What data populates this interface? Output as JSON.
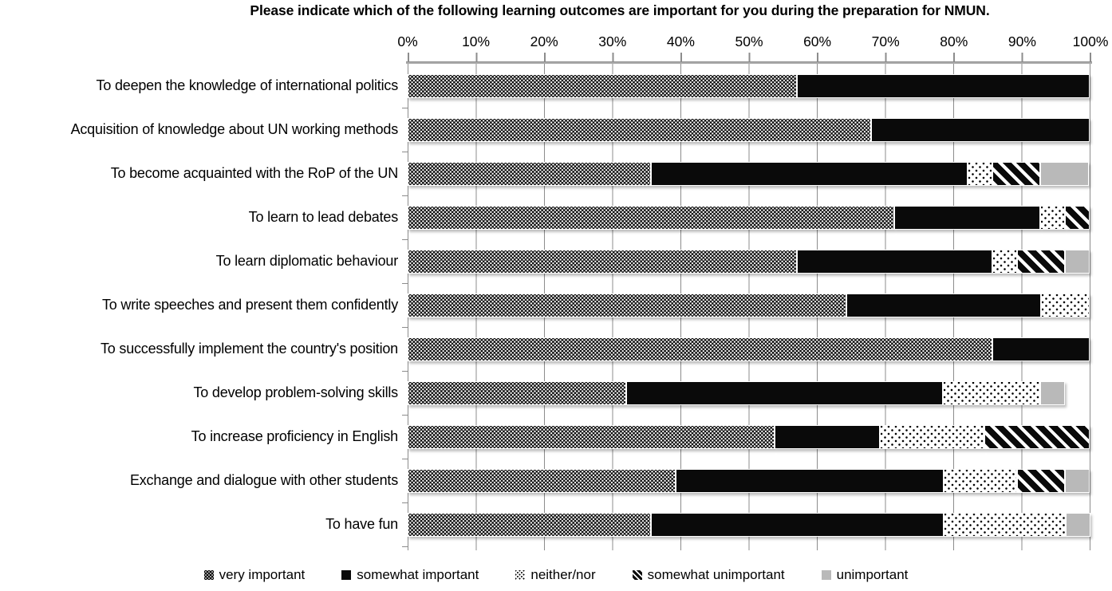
{
  "title": "Please indicate which of the following learning outcomes are important for you during the preparation for NMUN.",
  "axis": {
    "tick_labels": [
      "0%",
      "10%",
      "20%",
      "30%",
      "40%",
      "50%",
      "60%",
      "70%",
      "80%",
      "90%",
      "100%"
    ]
  },
  "legend": {
    "items": [
      {
        "label": "very important",
        "pattern": "dense-white-dots-on-black",
        "color": "#000000"
      },
      {
        "label": "somewhat important",
        "pattern": "solid-black",
        "color": "#0a0a0a"
      },
      {
        "label": "neither/nor",
        "pattern": "sparse-black-dots-on-white",
        "color": "#ffffff"
      },
      {
        "label": "somewhat unimportant",
        "pattern": "black-diagonal-stripes",
        "color": "#0a0a0a"
      },
      {
        "label": "unimportant",
        "pattern": "solid-gray",
        "color": "#b9b9b9"
      }
    ]
  },
  "chart_data": {
    "type": "bar",
    "orientation": "horizontal",
    "stacked": true,
    "unit": "percent",
    "xlim": [
      0,
      100
    ],
    "x_ticks": [
      0,
      10,
      20,
      30,
      40,
      50,
      60,
      70,
      80,
      90,
      100
    ],
    "grid": true,
    "legend_position": "bottom",
    "title": "Please indicate which of the following learning outcomes are important for you during the preparation for NMUN.",
    "categories": [
      "To deepen the knowledge of international politics",
      "Acquisition of knowledge about UN working methods",
      "To become acquainted with the RoP of the UN",
      "To learn to lead debates",
      "To learn diplomatic behaviour",
      "To write speeches and present them confidently",
      "To successfully implement the country's position",
      "To develop problem-solving skills",
      "To increase proficiency in English",
      "Exchange and dialogue with other students",
      "To have fun"
    ],
    "series": [
      {
        "name": "very important",
        "values": [
          57.1,
          67.9,
          35.7,
          71.4,
          57.1,
          64.3,
          85.7,
          32.1,
          53.8,
          39.3,
          35.7
        ]
      },
      {
        "name": "somewhat important",
        "values": [
          42.9,
          32.1,
          46.4,
          21.4,
          28.6,
          28.6,
          14.3,
          46.4,
          15.4,
          39.3,
          42.9
        ]
      },
      {
        "name": "neither/nor",
        "values": [
          0,
          0,
          3.6,
          3.6,
          3.6,
          7.1,
          0,
          14.3,
          15.4,
          10.7,
          17.9
        ]
      },
      {
        "name": "somewhat unimportant",
        "values": [
          0,
          0,
          7.1,
          3.6,
          7.1,
          0,
          0,
          0,
          15.4,
          7.1,
          0
        ]
      },
      {
        "name": "unimportant",
        "values": [
          0,
          0,
          7.1,
          0,
          3.6,
          0,
          0,
          3.6,
          0,
          3.6,
          3.6
        ]
      }
    ]
  }
}
